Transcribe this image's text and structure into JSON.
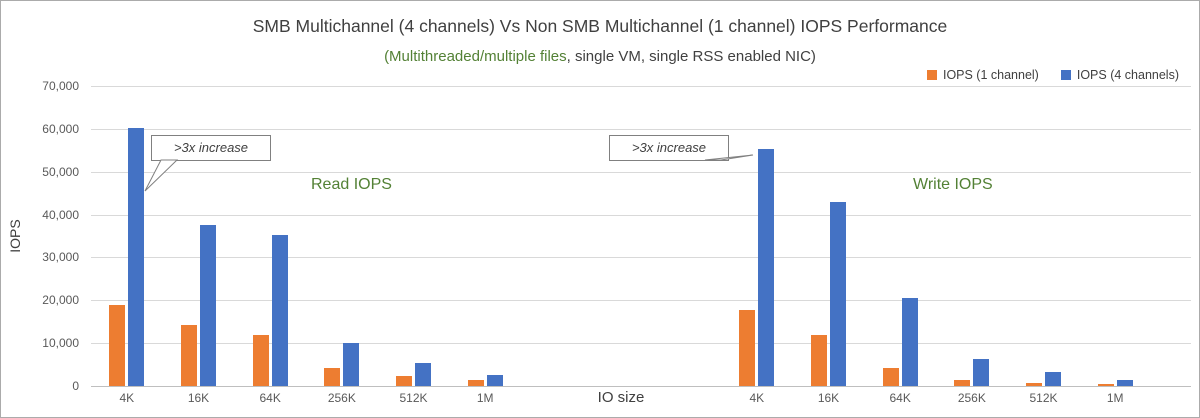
{
  "chart_data": {
    "type": "bar",
    "title": "SMB Multichannel (4 channels) Vs Non SMB Multichannel (1 channel) IOPS Performance",
    "subtitle_highlight": "(Multithreaded/multiple files",
    "subtitle_rest": ", single VM, single RSS enabled NIC)",
    "ylabel": "IOPS",
    "xlabel": "IO size",
    "ylim": [
      0,
      70000
    ],
    "ytick_step": 10000,
    "grid": true,
    "legend_position": "top-right",
    "colors": {
      "channel1": "#ED7D31",
      "channel4": "#4472C4",
      "highlight_green": "#538135",
      "gridline": "#D9D9D9",
      "axis_text": "#595959",
      "title_text": "#404040"
    },
    "groups": [
      {
        "label": "Read IOPS",
        "categories": [
          "4K",
          "16K",
          "64K",
          "256K",
          "512K",
          "1M"
        ],
        "series": [
          {
            "name": "IOPS (1 channel)",
            "color": "#ED7D31",
            "values": [
              19000,
              14300,
              12000,
              4300,
              2300,
              1300
            ]
          },
          {
            "name": "IOPS (4 channels)",
            "color": "#4472C4",
            "values": [
              60300,
              37500,
              35300,
              10000,
              5300,
              2600
            ]
          }
        ]
      },
      {
        "label": "Write IOPS",
        "categories": [
          "4K",
          "16K",
          "64K",
          "256K",
          "512K",
          "1M"
        ],
        "series": [
          {
            "name": "IOPS (1 channel)",
            "color": "#ED7D31",
            "values": [
              17700,
              11800,
              4200,
              1400,
              800,
              400
            ]
          },
          {
            "name": "IOPS (4 channels)",
            "color": "#4472C4",
            "values": [
              55300,
              43000,
              20500,
              6200,
              3200,
              1500
            ]
          }
        ]
      }
    ],
    "annotations": [
      {
        "text": ">3x increase",
        "target": "Read 4K IOPS (4 channels)"
      },
      {
        "text": ">3x increase",
        "target": "Write 4K IOPS (4 channels)"
      }
    ]
  }
}
